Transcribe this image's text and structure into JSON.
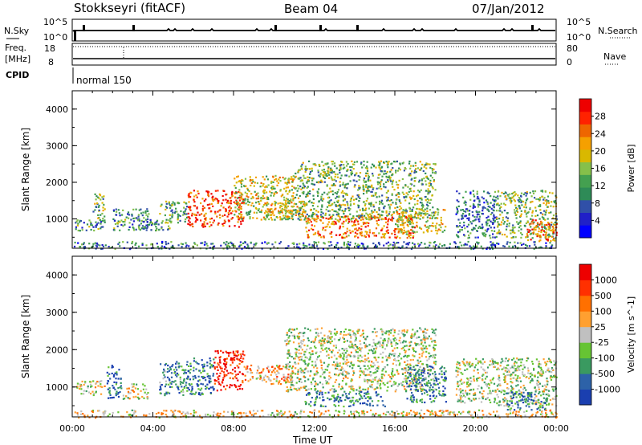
{
  "header": {
    "station": "Stokkseyri (fitACF)",
    "beam": "Beam 04",
    "date": "07/Jan/2012"
  },
  "status_panels": {
    "nsky_label": "N.Sky",
    "nsearch_label": "N.Search",
    "nsky_ticks": [
      "10^5",
      "10^0"
    ],
    "nsearch_ticks": [
      "10^5",
      "10^0"
    ],
    "freq_label": "Freq.",
    "freq_unit": "[MHz]",
    "freq_ticks": [
      "18",
      "8"
    ],
    "nave_label": "Nave",
    "nave_ticks": [
      "80",
      "0"
    ],
    "cpid_label": "CPID",
    "cpid_value": "normal 150"
  },
  "chart_data": [
    {
      "type": "heatmap",
      "name": "power",
      "ylabel": "Slant Range [km]",
      "yticks": [
        "1000",
        "2000",
        "3000",
        "4000"
      ],
      "ylim": [
        200,
        4500
      ],
      "xlim_hours": [
        0,
        24
      ],
      "colorbar_label": "Power [dB]",
      "colorbar_ticks": [
        "28",
        "24",
        "20",
        "16",
        "12",
        "8",
        "4"
      ],
      "colorbar_colors": [
        "#0000ff",
        "#2020c8",
        "#3050a8",
        "#2e8b57",
        "#44a050",
        "#86c04a",
        "#d9b800",
        "#f5a000",
        "#ee6600",
        "#ff2200",
        "#ee0000"
      ],
      "blobs": [
        {
          "t": [
            0.1,
            1.7
          ],
          "r": [
            700,
            1000
          ],
          "level": 0.35
        },
        {
          "t": [
            1.0,
            1.6
          ],
          "r": [
            900,
            1700
          ],
          "level": 0.45
        },
        {
          "t": [
            2.0,
            3.9
          ],
          "r": [
            700,
            1300
          ],
          "level": 0.35
        },
        {
          "t": [
            3.2,
            4.8
          ],
          "r": [
            700,
            1000
          ],
          "level": 0.35
        },
        {
          "t": [
            4.3,
            5.7
          ],
          "r": [
            900,
            1500
          ],
          "level": 0.4
        },
        {
          "t": [
            5.7,
            8.5
          ],
          "r": [
            800,
            1800
          ],
          "level": 0.85
        },
        {
          "t": [
            8.0,
            11.0
          ],
          "r": [
            1000,
            2200
          ],
          "level": 0.55
        },
        {
          "t": [
            9.5,
            11.5
          ],
          "r": [
            1000,
            1500
          ],
          "level": 0.6
        },
        {
          "t": [
            11.0,
            18.0
          ],
          "r": [
            1000,
            2600
          ],
          "level": 0.45
        },
        {
          "t": [
            11.5,
            17.0
          ],
          "r": [
            500,
            1100
          ],
          "level": 0.75
        },
        {
          "t": [
            16.0,
            18.5
          ],
          "r": [
            600,
            1300
          ],
          "level": 0.6
        },
        {
          "t": [
            19.0,
            21.0
          ],
          "r": [
            500,
            1800
          ],
          "level": 0.3
        },
        {
          "t": [
            21.0,
            24.0
          ],
          "r": [
            500,
            1800
          ],
          "level": 0.45
        },
        {
          "t": [
            22.5,
            24.0
          ],
          "r": [
            400,
            1000
          ],
          "level": 0.8
        },
        {
          "t": [
            0,
            24
          ],
          "r": [
            200,
            400
          ],
          "level": 0.3
        }
      ]
    },
    {
      "type": "heatmap",
      "name": "velocity",
      "ylabel": "Slant Range [km]",
      "yticks": [
        "1000",
        "2000",
        "3000",
        "4000"
      ],
      "ylim": [
        200,
        4500
      ],
      "xlim_hours": [
        0,
        24
      ],
      "xticks": [
        "00:00",
        "04:00",
        "08:00",
        "12:00",
        "16:00",
        "20:00",
        "00:00"
      ],
      "xlabel": "Time UT",
      "colorbar_label": "Velocity [m s^-1]",
      "colorbar_ticks": [
        "1000",
        "500",
        "100",
        "25",
        "-25",
        "-100",
        "-500",
        "-1000"
      ],
      "colorbar_colors": [
        "#1a3fb0",
        "#2d62a8",
        "#3a9a60",
        "#66c433",
        "#c0c0c0",
        "#ffa030",
        "#ff7000",
        "#ff3000",
        "#ee0000"
      ],
      "blobs": [
        {
          "t": [
            0.2,
            1.6
          ],
          "r": [
            800,
            1200
          ],
          "level": 0.5
        },
        {
          "t": [
            1.7,
            2.4
          ],
          "r": [
            700,
            1600
          ],
          "level": 0.2
        },
        {
          "t": [
            2.5,
            3.8
          ],
          "r": [
            700,
            1100
          ],
          "level": 0.5
        },
        {
          "t": [
            4.3,
            5.7
          ],
          "r": [
            800,
            1700
          ],
          "level": 0.25
        },
        {
          "t": [
            5.7,
            7.0
          ],
          "r": [
            800,
            1800
          ],
          "level": 0.2
        },
        {
          "t": [
            7.0,
            8.5
          ],
          "r": [
            900,
            2000
          ],
          "level": 0.9
        },
        {
          "t": [
            8.5,
            11.0
          ],
          "r": [
            1100,
            1600
          ],
          "level": 0.65
        },
        {
          "t": [
            10.5,
            18.0
          ],
          "r": [
            900,
            2600
          ],
          "level": 0.45
        },
        {
          "t": [
            11.5,
            15.5
          ],
          "r": [
            500,
            900
          ],
          "level": 0.2
        },
        {
          "t": [
            16.5,
            18.5
          ],
          "r": [
            600,
            1600
          ],
          "level": 0.2
        },
        {
          "t": [
            19.0,
            21.0
          ],
          "r": [
            600,
            1800
          ],
          "level": 0.45
        },
        {
          "t": [
            21.0,
            24.0
          ],
          "r": [
            500,
            1800
          ],
          "level": 0.45
        },
        {
          "t": [
            21.5,
            23.5
          ],
          "r": [
            400,
            900
          ],
          "level": 0.2
        },
        {
          "t": [
            0,
            24
          ],
          "r": [
            200,
            400
          ],
          "level": 0.55
        }
      ]
    }
  ]
}
